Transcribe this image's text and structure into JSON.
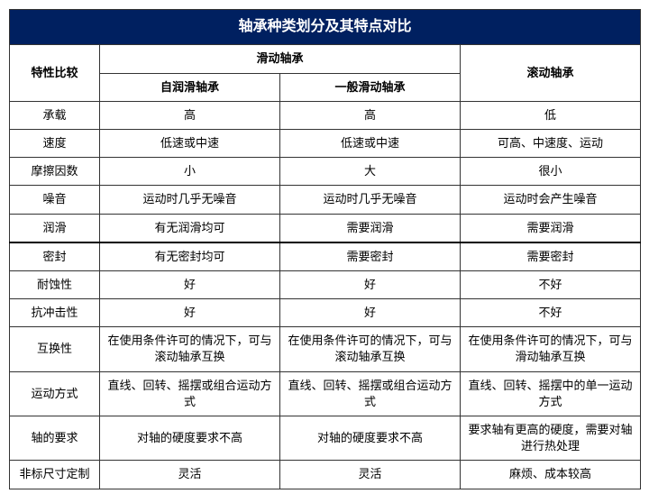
{
  "title": "轴承种类划分及其特点对比",
  "columns": {
    "feature": "特性比较",
    "sliding_group": "滑动轴承",
    "self_lub": "自润滑轴承",
    "general_sliding": "一般滑动轴承",
    "rolling": "滚动轴承"
  },
  "rows": [
    {
      "label": "承载",
      "c1": "高",
      "c2": "高",
      "c3": "低"
    },
    {
      "label": "速度",
      "c1": "低速或中速",
      "c2": "低速或中速",
      "c3": "可高、中速度、运动"
    },
    {
      "label": "摩擦因数",
      "c1": "小",
      "c2": "大",
      "c3": "很小"
    },
    {
      "label": "噪音",
      "c1": "运动时几乎无噪音",
      "c2": "运动时几乎无噪音",
      "c3": "运动时会产生噪音"
    },
    {
      "label": "润滑",
      "c1": "有无润滑均可",
      "c2": "需要润滑",
      "c3": "需要润滑"
    },
    {
      "label": "密封",
      "c1": "有无密封均可",
      "c2": "需要密封",
      "c3": "需要密封"
    },
    {
      "label": "耐蚀性",
      "c1": "好",
      "c2": "好",
      "c3": "不好"
    },
    {
      "label": "抗冲击性",
      "c1": "好",
      "c2": "好",
      "c3": "不好"
    },
    {
      "label": "互换性",
      "c1": "在使用条件许可的情况下，可与滚动轴承互换",
      "c2": "在使用条件许可的情况下，可与滚动轴承互换",
      "c3": "在使用条件许可的情况下，可与滑动轴承互换"
    },
    {
      "label": "运动方式",
      "c1": "直线、回转、摇摆或组合运动方式",
      "c2": "直线、回转、摇摆或组合运动方式",
      "c3": "直线、回转、摇摆中的单一运动方式"
    },
    {
      "label": "轴的要求",
      "c1": "对轴的硬度要求不高",
      "c2": "对轴的硬度要求不高",
      "c3": "要求轴有更高的硬度，需要对轴进行热处理"
    },
    {
      "label": "非标尺寸定制",
      "c1": "灵活",
      "c2": "灵活",
      "c3": "麻烦、成本较高"
    }
  ],
  "style": {
    "title_bg": "#002060",
    "title_color": "#ffffff",
    "border_color": "#333333",
    "font_size_body": 13,
    "font_size_title": 16,
    "thick_row_index": 5
  }
}
